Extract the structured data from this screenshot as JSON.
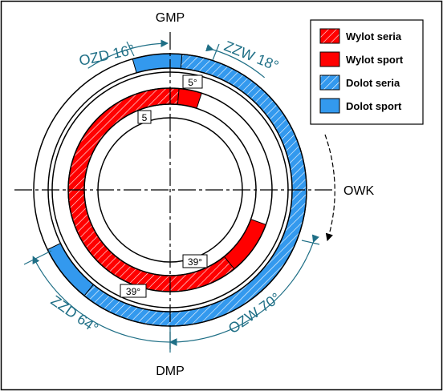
{
  "labels": {
    "tdc": "GMP",
    "bdc": "DMP",
    "rotation": "OWK"
  },
  "legend": {
    "items": [
      {
        "label": "Wylot seria",
        "swatch": "hatched-red"
      },
      {
        "label": "Wylot sport",
        "swatch": "solid-red"
      },
      {
        "label": "Dolot seria",
        "swatch": "hatched-blue"
      },
      {
        "label": "Dolot sport",
        "swatch": "solid-blue"
      }
    ]
  },
  "dimensions": {
    "ozd": "OZD 16°",
    "zzw": "ZZW 18°",
    "zzd": "ZZD 64°",
    "ozw": "OZW 70°"
  },
  "angle_boxes": {
    "intake_series_open": "5°",
    "exhaust_series_close": "5",
    "exhaust_series_open": "39°",
    "intake_series_close": "39°"
  },
  "colors": {
    "exhaust": "#ff0000",
    "intake": "#3399ee",
    "dimension": "#1f6f86",
    "outline": "#000000"
  }
}
